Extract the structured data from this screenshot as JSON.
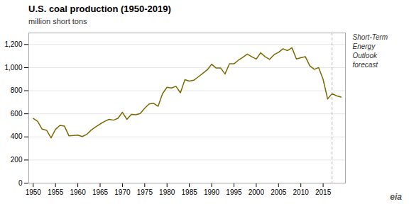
{
  "chart_data": {
    "type": "line",
    "title": "U.S. coal production (1950-2019)",
    "subtitle": "million short tons",
    "color": "#7a6a00",
    "grid": true,
    "xlim": [
      1949,
      2020
    ],
    "ylim": [
      0,
      1300
    ],
    "xticks": [
      1950,
      1955,
      1960,
      1965,
      1970,
      1975,
      1980,
      1985,
      1990,
      1995,
      2000,
      2005,
      2010,
      2015
    ],
    "yticks": [
      0,
      200,
      400,
      600,
      800,
      {
        "value": 1000,
        "label": "1,000"
      },
      {
        "value": 1200,
        "label": "1,200"
      }
    ],
    "x": [
      1950,
      1951,
      1952,
      1953,
      1954,
      1955,
      1956,
      1957,
      1958,
      1959,
      1960,
      1961,
      1962,
      1963,
      1964,
      1965,
      1966,
      1967,
      1968,
      1969,
      1970,
      1971,
      1972,
      1973,
      1974,
      1975,
      1976,
      1977,
      1978,
      1979,
      1980,
      1981,
      1982,
      1983,
      1984,
      1985,
      1986,
      1987,
      1988,
      1989,
      1990,
      1991,
      1992,
      1993,
      1994,
      1995,
      1996,
      1997,
      1998,
      1999,
      2000,
      2001,
      2002,
      2003,
      2004,
      2005,
      2006,
      2007,
      2008,
      2009,
      2010,
      2011,
      2012,
      2013,
      2014,
      2015,
      2016,
      2017,
      2018,
      2019
    ],
    "values": [
      560,
      534,
      467,
      457,
      392,
      465,
      500,
      493,
      410,
      412,
      415,
      403,
      422,
      459,
      487,
      512,
      534,
      552,
      545,
      561,
      613,
      552,
      595,
      592,
      603,
      648,
      685,
      691,
      665,
      776,
      829,
      823,
      838,
      782,
      895,
      883,
      890,
      920,
      950,
      980,
      1029,
      996,
      997,
      945,
      1033,
      1033,
      1064,
      1089,
      1117,
      1094,
      1074,
      1128,
      1094,
      1071,
      1112,
      1132,
      1163,
      1147,
      1172,
      1075,
      1085,
      1095,
      1016,
      985,
      1000,
      897,
      728,
      775,
      756,
      745
    ],
    "annotations": [
      {
        "x": 2017,
        "text": "Short-Term\nEnergy\nOutlook\nforecast"
      },
      {
        "text": "eia"
      }
    ]
  }
}
